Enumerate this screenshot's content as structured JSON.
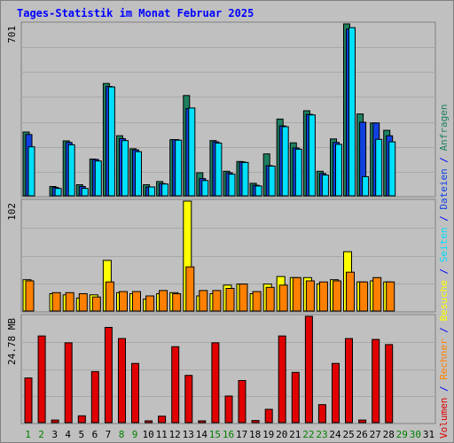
{
  "title": "Tages-Statistik im Monat Februar 2025",
  "colors": {
    "anfragen": "#1e8060",
    "dateien": "#1040e0",
    "seiten": "#00e0ff",
    "besuche": "#ffff00",
    "rechner": "#ff8000",
    "volumen": "#e00000",
    "weekday_label": "#000000",
    "weekend_label": "#008000",
    "background": "#c0c0c0",
    "separator": "#0000ff"
  },
  "legend": {
    "volumen": "Volumen",
    "rechner": "Rechner",
    "besuche": "Besuche",
    "seiten": "Seiten",
    "dateien": "Dateien",
    "anfragen": "Anfragen",
    "separator": " / "
  },
  "chart_data": [
    {
      "type": "bar",
      "panel": "top",
      "ytick_label": "701",
      "ylim": [
        0,
        701
      ],
      "categories": [
        "1",
        "2",
        "3",
        "4",
        "5",
        "6",
        "7",
        "8",
        "9",
        "10",
        "11",
        "12",
        "13",
        "14",
        "15",
        "16",
        "17",
        "18",
        "19",
        "20",
        "21",
        "22",
        "23",
        "24",
        "25",
        "26",
        "27",
        "28",
        "29",
        "30",
        "31"
      ],
      "series": [
        {
          "name": "Anfragen",
          "key": "anfragen",
          "values": [
            260,
            0,
            38,
            224,
            45,
            150,
            458,
            245,
            192,
            45,
            58,
            229,
            409,
            94,
            225,
            100,
            140,
            51,
            171,
            313,
            216,
            347,
            100,
            232,
            701,
            334,
            297,
            267,
            0,
            0,
            0
          ]
        },
        {
          "name": "Dateien",
          "key": "dateien",
          "values": [
            250,
            0,
            34,
            218,
            38,
            148,
            446,
            233,
            187,
            36,
            50,
            229,
            356,
            70,
            220,
            94,
            138,
            43,
            123,
            285,
            195,
            332,
            91,
            218,
            680,
            300,
            297,
            245,
            0,
            0,
            0
          ]
        },
        {
          "name": "Seiten",
          "key": "seiten",
          "values": [
            200,
            0,
            30,
            208,
            30,
            142,
            444,
            225,
            180,
            36,
            48,
            227,
            358,
            62,
            215,
            88,
            136,
            40,
            121,
            282,
            190,
            330,
            85,
            210,
            686,
            78,
            230,
            220,
            0,
            0,
            0
          ]
        }
      ]
    },
    {
      "type": "bar",
      "panel": "middle",
      "ytick_label": "102",
      "ylim": [
        0,
        102
      ],
      "series": [
        {
          "name": "Besuche",
          "key": "besuche",
          "values": [
            29,
            0,
            16,
            15,
            12,
            15,
            47,
            17,
            16,
            11,
            16,
            17,
            102,
            14,
            16,
            24,
            25,
            16,
            25,
            32,
            31,
            31,
            25,
            29,
            55,
            27,
            28,
            27,
            0,
            0,
            0
          ]
        },
        {
          "name": "Rechner",
          "key": "rechner",
          "values": [
            28,
            0,
            17,
            17,
            16,
            13,
            27,
            18,
            18,
            14,
            19,
            16,
            41,
            19,
            19,
            21,
            25,
            18,
            22,
            24,
            31,
            28,
            27,
            28,
            36,
            27,
            31,
            27,
            0,
            0,
            0
          ]
        }
      ]
    },
    {
      "type": "bar",
      "panel": "bottom",
      "ytick_label": "24.78 MB",
      "ylim": [
        0,
        24.78
      ],
      "series": [
        {
          "name": "Volumen",
          "key": "volumen",
          "values": [
            10.4,
            20.2,
            0.6,
            18.6,
            1.6,
            11.9,
            22.2,
            19.6,
            13.8,
            0.3,
            1.5,
            17.7,
            11.0,
            0.2,
            18.6,
            6.2,
            9.8,
            0.5,
            3.1,
            20.2,
            11.7,
            24.78,
            4.2,
            13.8,
            19.6,
            0.6,
            19.4,
            18.2,
            0,
            0,
            0
          ]
        }
      ]
    }
  ],
  "weekend_days": [
    1,
    2,
    8,
    9,
    15,
    16,
    22,
    23,
    29,
    30
  ]
}
